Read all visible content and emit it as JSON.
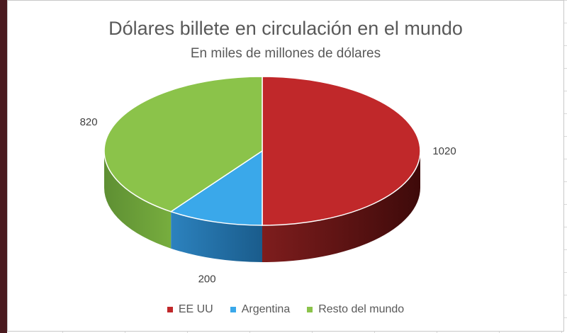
{
  "chart_data": {
    "type": "pie",
    "title": "Dólares billete en circulación en el mundo",
    "subtitle": "En miles de millones de dólares",
    "categories": [
      "EE UU",
      "Argentina",
      "Resto del mundo"
    ],
    "values": [
      1020,
      200,
      820
    ],
    "colors": [
      "#c0282a",
      "#3aa8ea",
      "#8bc34a"
    ],
    "legend_position": "bottom",
    "style": "3d"
  }
}
